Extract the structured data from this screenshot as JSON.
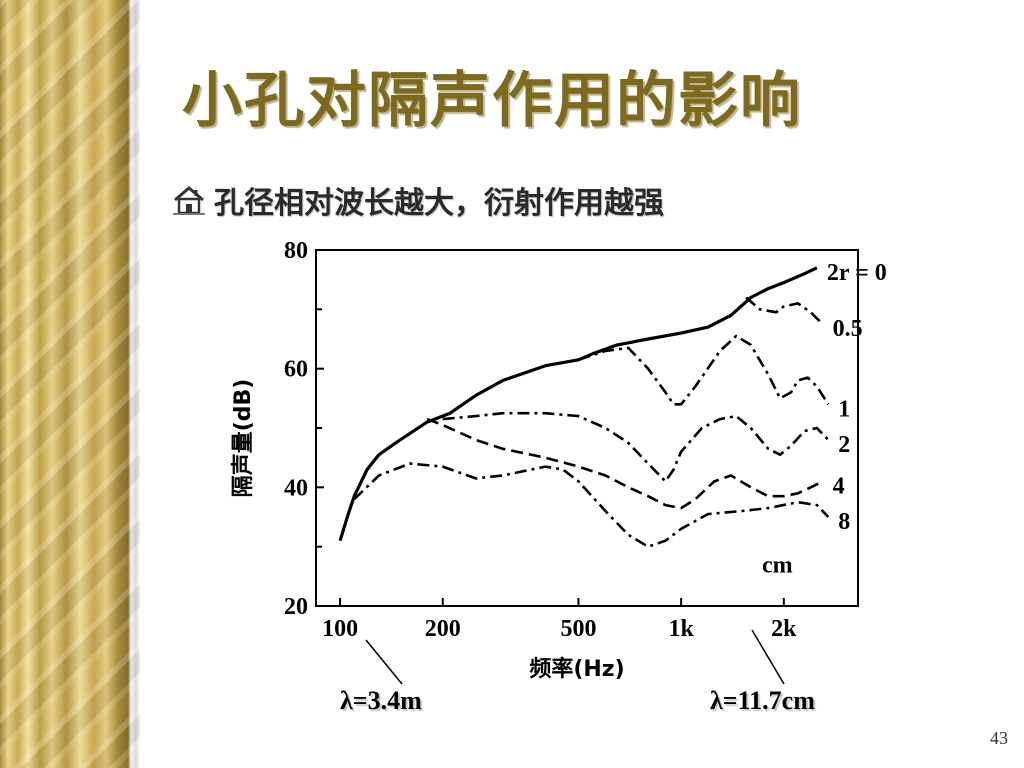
{
  "slide": {
    "title": "小孔对隔声作用的影响",
    "bullet": "孔径相对波长越大，衍射作用越强",
    "page_number": "43",
    "annotations": {
      "left": "λ=3.4m",
      "right": "λ=11.7cm"
    },
    "colors": {
      "title": "#7d6a1c",
      "pillar": "#c9ad52",
      "text": "#2a2a2a"
    },
    "bullet_icon": "house-icon"
  },
  "chart_data": {
    "type": "line",
    "xlabel": "频率(Hz)",
    "ylabel": "隔声量(dB)",
    "x_scale": "log",
    "xlim": [
      85,
      3300
    ],
    "ylim": [
      20,
      80
    ],
    "xticks": [
      100,
      200,
      500,
      1000,
      2000
    ],
    "xtick_labels": [
      "100",
      "200",
      "500",
      "1k",
      "2k"
    ],
    "yticks": [
      20,
      40,
      60,
      80
    ],
    "ytick_labels": [
      "20",
      "40",
      "60",
      "80"
    ],
    "unit_label": "cm",
    "series": [
      {
        "name": "2r=0",
        "label": "2r = 0",
        "style": "solid",
        "points": [
          [
            100,
            31
          ],
          [
            105,
            35
          ],
          [
            110,
            38.5
          ],
          [
            120,
            43
          ],
          [
            130,
            45.5
          ],
          [
            150,
            48
          ],
          [
            180,
            51
          ],
          [
            210,
            52.5
          ],
          [
            250,
            55.5
          ],
          [
            300,
            58
          ],
          [
            400,
            60.5
          ],
          [
            500,
            61.5
          ],
          [
            550,
            62.5
          ],
          [
            650,
            64
          ],
          [
            800,
            65
          ],
          [
            1000,
            66
          ],
          [
            1200,
            67
          ],
          [
            1400,
            69
          ],
          [
            1600,
            72
          ],
          [
            1800,
            73.5
          ],
          [
            2000,
            74.5
          ],
          [
            2300,
            76
          ],
          [
            2500,
            77
          ]
        ]
      },
      {
        "name": "0.5",
        "label": "0.5",
        "style": "dashdot",
        "points": [
          [
            1550,
            72
          ],
          [
            1700,
            70
          ],
          [
            1900,
            69.5
          ],
          [
            2000,
            70.5
          ],
          [
            2200,
            71
          ],
          [
            2400,
            69.5
          ],
          [
            2600,
            67.5
          ]
        ]
      },
      {
        "name": "1",
        "label": "1",
        "style": "dashdot",
        "points": [
          [
            500,
            61.5
          ],
          [
            600,
            63
          ],
          [
            700,
            63.5
          ],
          [
            800,
            60
          ],
          [
            900,
            56
          ],
          [
            950,
            54
          ],
          [
            1000,
            54
          ],
          [
            1100,
            57
          ],
          [
            1300,
            63
          ],
          [
            1450,
            65.5
          ],
          [
            1600,
            64
          ],
          [
            1800,
            59
          ],
          [
            1950,
            55
          ],
          [
            2100,
            56
          ],
          [
            2200,
            58
          ],
          [
            2350,
            58.5
          ],
          [
            2500,
            57
          ],
          [
            2700,
            54
          ]
        ]
      },
      {
        "name": "2",
        "label": "2",
        "style": "dashdot",
        "points": [
          [
            200,
            51.5
          ],
          [
            250,
            52
          ],
          [
            300,
            52.5
          ],
          [
            400,
            52.5
          ],
          [
            500,
            52
          ],
          [
            600,
            50
          ],
          [
            700,
            47.5
          ],
          [
            800,
            44
          ],
          [
            900,
            41
          ],
          [
            950,
            43
          ],
          [
            1000,
            46
          ],
          [
            1150,
            50
          ],
          [
            1300,
            51.5
          ],
          [
            1450,
            52
          ],
          [
            1600,
            50
          ],
          [
            1800,
            46.5
          ],
          [
            1950,
            45.5
          ],
          [
            2100,
            47
          ],
          [
            2300,
            49.5
          ],
          [
            2500,
            50
          ],
          [
            2700,
            48
          ]
        ]
      },
      {
        "name": "4",
        "label": "4",
        "style": "dashed",
        "points": [
          [
            180,
            51.5
          ],
          [
            200,
            50.5
          ],
          [
            250,
            48
          ],
          [
            300,
            46.5
          ],
          [
            400,
            45
          ],
          [
            500,
            43.5
          ],
          [
            600,
            42
          ],
          [
            700,
            40
          ],
          [
            800,
            38.5
          ],
          [
            900,
            37
          ],
          [
            1000,
            36.5
          ],
          [
            1100,
            38
          ],
          [
            1250,
            41
          ],
          [
            1400,
            42
          ],
          [
            1600,
            40
          ],
          [
            1800,
            38.5
          ],
          [
            2000,
            38.5
          ],
          [
            2200,
            39
          ],
          [
            2400,
            40
          ],
          [
            2600,
            41
          ]
        ]
      },
      {
        "name": "8",
        "label": "8",
        "style": "dashdot",
        "points": [
          [
            110,
            38
          ],
          [
            130,
            42
          ],
          [
            160,
            44
          ],
          [
            200,
            43.5
          ],
          [
            250,
            41.5
          ],
          [
            300,
            42
          ],
          [
            400,
            43.5
          ],
          [
            450,
            43
          ],
          [
            500,
            41
          ],
          [
            600,
            36
          ],
          [
            700,
            32
          ],
          [
            800,
            30
          ],
          [
            900,
            31
          ],
          [
            1000,
            33
          ],
          [
            1200,
            35.5
          ],
          [
            1500,
            36
          ],
          [
            1800,
            36.5
          ],
          [
            2200,
            37.5
          ],
          [
            2500,
            37
          ],
          [
            2700,
            35
          ]
        ]
      }
    ]
  }
}
